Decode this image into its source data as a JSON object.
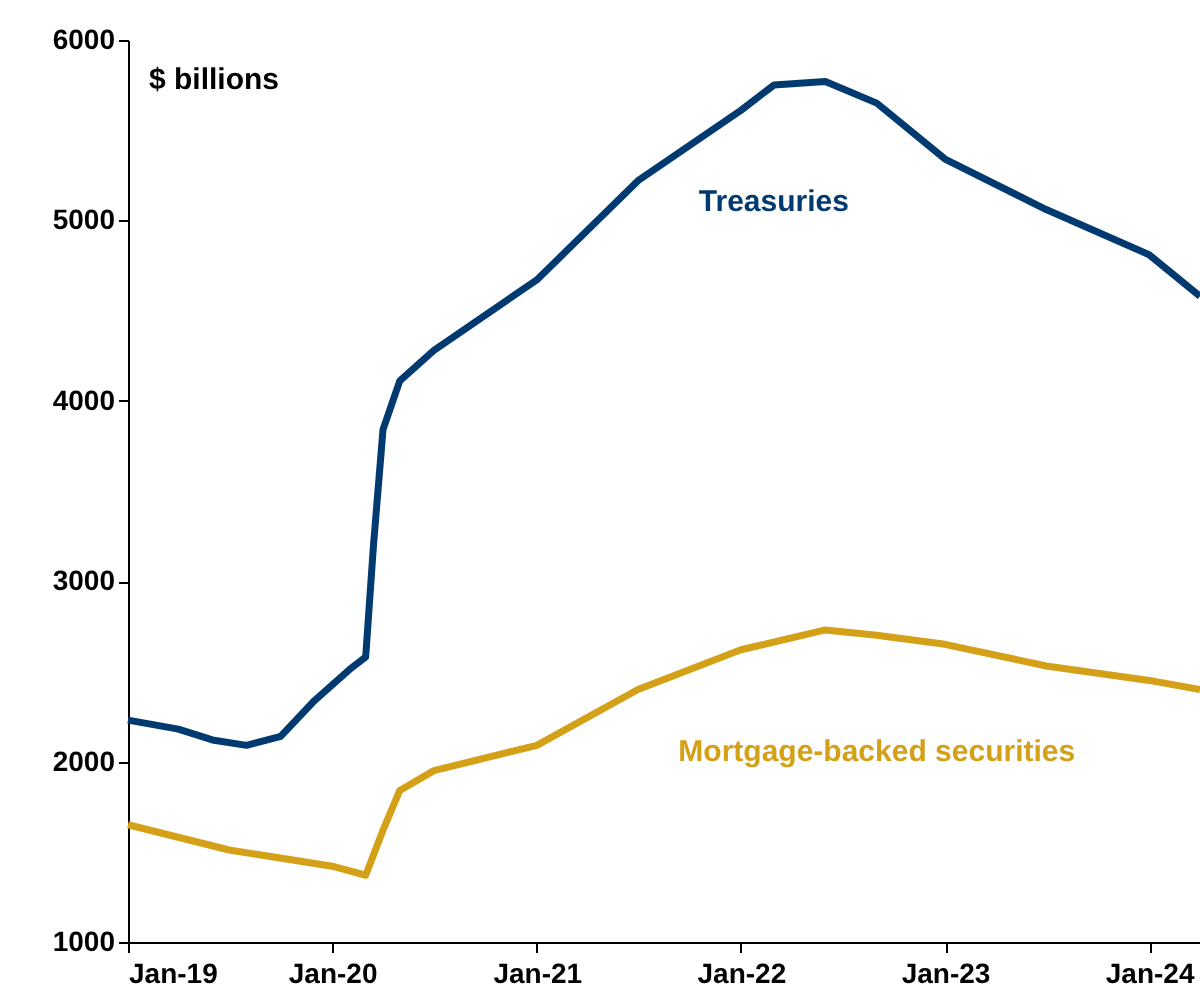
{
  "chart_data": {
    "type": "line",
    "ylabel": "$ billions",
    "xlim": [
      "2019-01-01",
      "2024-04-01"
    ],
    "ylim": [
      1000,
      6000
    ],
    "yticks": [
      1000,
      2000,
      3000,
      4000,
      5000,
      6000
    ],
    "xticks": [
      {
        "value": "2019-01-01",
        "label": "Jan-19"
      },
      {
        "value": "2020-01-01",
        "label": "Jan-20"
      },
      {
        "value": "2021-01-01",
        "label": "Jan-21"
      },
      {
        "value": "2022-01-01",
        "label": "Jan-22"
      },
      {
        "value": "2023-01-01",
        "label": "Jan-23"
      },
      {
        "value": "2024-01-01",
        "label": "Jan-24"
      }
    ],
    "grid": false,
    "legend": false,
    "line_style": "solid",
    "marker": "none",
    "series": [
      {
        "name": "Treasuries",
        "color": "#003a70",
        "x": [
          "2019-01-01",
          "2019-04-01",
          "2019-06-01",
          "2019-08-01",
          "2019-10-01",
          "2019-12-01",
          "2020-02-01",
          "2020-03-01",
          "2020-03-15",
          "2020-04-01",
          "2020-05-01",
          "2020-07-01",
          "2021-01-01",
          "2021-07-01",
          "2022-01-01",
          "2022-03-01",
          "2022-06-01",
          "2022-09-01",
          "2023-01-01",
          "2023-07-01",
          "2024-01-01",
          "2024-04-01"
        ],
        "values": [
          2230,
          2180,
          2120,
          2090,
          2140,
          2340,
          2510,
          2580,
          3200,
          3840,
          4110,
          4280,
          4670,
          5220,
          5610,
          5750,
          5770,
          5650,
          5340,
          5060,
          4810,
          4580
        ]
      },
      {
        "name": "Mortgage-backed securities",
        "color": "#d4a017",
        "x": [
          "2019-01-01",
          "2019-07-01",
          "2020-01-01",
          "2020-03-01",
          "2020-04-01",
          "2020-05-01",
          "2020-07-01",
          "2021-01-01",
          "2021-07-01",
          "2022-01-01",
          "2022-06-01",
          "2022-09-01",
          "2023-01-01",
          "2023-07-01",
          "2024-01-01",
          "2024-04-01"
        ],
        "values": [
          1650,
          1510,
          1420,
          1370,
          1620,
          1840,
          1950,
          2090,
          2400,
          2620,
          2730,
          2700,
          2650,
          2530,
          2450,
          2400
        ]
      }
    ]
  }
}
